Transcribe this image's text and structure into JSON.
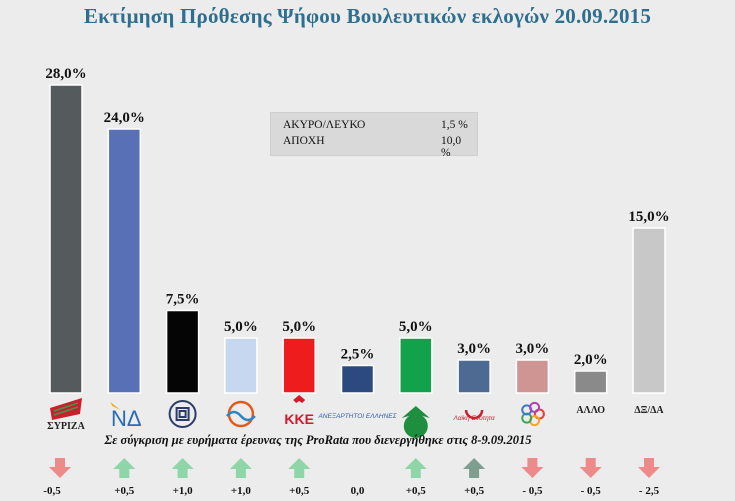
{
  "title": "Εκτίμηση Πρόθεσης Ψήφου Βουλευτικών εκλογών 20.09.2015",
  "info_box": [
    {
      "label": "ΑΚΥΡΟ/ΛΕΥΚΟ",
      "value": "1,5 %"
    },
    {
      "label": "ΑΠΟΧΗ",
      "value": "10,0 %"
    }
  ],
  "comparison_note": "Σε σύγκριση με ευρήματα έρευνας της ProRata που διενεργήθηκε στις 8-9.09.2015",
  "chart_data": {
    "type": "bar",
    "categories": [
      "ΣΥΡΙΖΑ",
      "ΝΔ",
      "ΧΑ",
      "ΠΟΤΑΜΙ",
      "ΚΚΕ",
      "ΑΝΕΛ",
      "ΠΑΣΟΚ",
      "ΛΑΕ",
      "ΕΚ",
      "ΑΛΛΟ",
      "ΔΞ/ΔΑ"
    ],
    "category_labels": [
      "ΣΥΡΙΖΑ",
      "ΝΔ",
      "",
      "",
      "ΚΚΕ",
      "ΑΝΕΞΑΡΤΗΤΟΙ ΕΛΛΗΝΕΣ",
      "",
      "Λαϊκή Ενότητα",
      "",
      "ΑΛΛΟ",
      "ΔΞ/ΔΑ"
    ],
    "values": [
      28.0,
      24.0,
      7.5,
      5.0,
      5.0,
      2.5,
      5.0,
      3.0,
      3.0,
      2.0,
      15.0
    ],
    "value_labels": [
      "28,0%",
      "24,0%",
      "7,5%",
      "5,0%",
      "5,0%",
      "2,5%",
      "5,0%",
      "3,0%",
      "3,0%",
      "2,0%",
      "15,0%"
    ],
    "colors": [
      "#555b5d",
      "#5870b5",
      "#050505",
      "#c5d8ef",
      "#ee1c1c",
      "#2c4a7e",
      "#12a24b",
      "#4d6a92",
      "#cf9593",
      "#8a8a8a",
      "#c8c8c8"
    ],
    "changes": [
      -0.5,
      0.5,
      1.0,
      1.0,
      0.5,
      0.0,
      0.5,
      0.5,
      -0.5,
      -0.5,
      -2.5
    ],
    "change_labels": [
      "-0,5",
      "+0,5",
      "+1,0",
      "+1,0",
      "+0,5",
      "0,0",
      "+0,5",
      "+0,5",
      "- 0,5",
      "- 0,5",
      "- 2,5"
    ],
    "up_color": "#8ed6a8",
    "up_color_dark": "#7f9e90",
    "down_color": "#ee8a8a",
    "ylim": [
      0,
      30
    ]
  }
}
